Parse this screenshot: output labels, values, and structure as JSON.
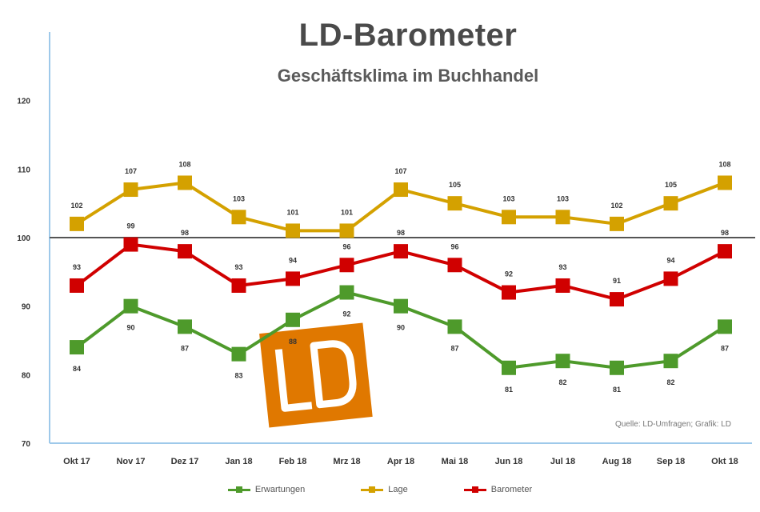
{
  "chart_data": {
    "type": "line",
    "title": "LD-Barometer",
    "subtitle": "Geschäftsklima im Buchhandel",
    "xlabel": "",
    "ylabel": "",
    "ylim": [
      70,
      130
    ],
    "yticks": [
      70,
      80,
      90,
      100,
      110,
      120
    ],
    "ytick_labels": [
      "70",
      "80",
      "90",
      "100",
      "110",
      "120"
    ],
    "reference_line": 100,
    "categories": [
      "Okt 17",
      "Nov 17",
      "Dez 17",
      "Jan 18",
      "Feb 18",
      "Mrz 18",
      "Apr 18",
      "Mai 18",
      "Jun 18",
      "Jul 18",
      "Aug 18",
      "Sep 18",
      "Okt 18"
    ],
    "series": [
      {
        "name": "Erwartungen",
        "color": "#4e9a2b",
        "values": [
          84,
          90,
          87,
          83,
          88,
          92,
          90,
          87,
          81,
          82,
          81,
          82,
          87
        ],
        "label_position": "below"
      },
      {
        "name": "Lage",
        "color": "#d4a100",
        "values": [
          102,
          107,
          108,
          103,
          101,
          101,
          107,
          105,
          103,
          103,
          102,
          105,
          108
        ],
        "label_position": "above"
      },
      {
        "name": "Barometer",
        "color": "#d00000",
        "values": [
          93,
          99,
          98,
          93,
          94,
          96,
          98,
          96,
          92,
          93,
          91,
          94,
          98
        ],
        "label_position": "above"
      }
    ],
    "grid": false,
    "legend_position": "bottom"
  },
  "source_note": "Quelle: LD-Umfragen; Grafik: LD",
  "logo": {
    "letters": "LD",
    "color": "#e07800"
  }
}
